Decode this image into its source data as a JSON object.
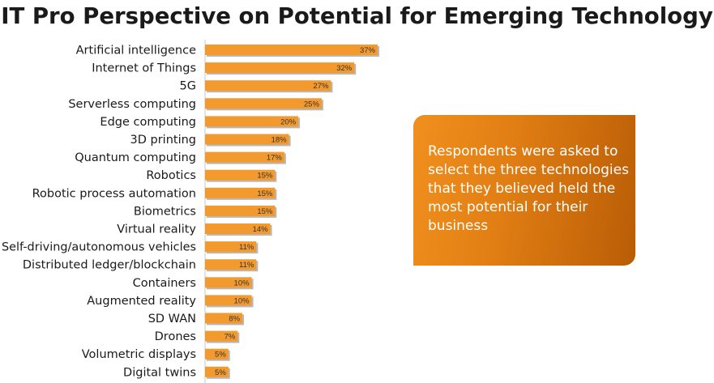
{
  "colors": {
    "bar": "#f39a2f",
    "bar_shadow": "#b8b8b8",
    "axis": "#c8c8c8"
  },
  "chart_data": {
    "type": "bar",
    "orientation": "horizontal",
    "title": "IT Pro Perspective on Potential for Emerging Technology",
    "value_unit": "%",
    "xlim": [
      0,
      37
    ],
    "categories": [
      "Artificial intelligence",
      "Internet of Things",
      "5G",
      "Serverless computing",
      "Edge computing",
      "3D printing",
      "Quantum computing",
      "Robotics",
      "Robotic process automation",
      "Biometrics",
      "Virtual reality",
      "Self-driving/autonomous vehicles",
      "Distributed ledger/blockchain",
      "Containers",
      "Augmented reality",
      "SD WAN",
      "Drones",
      "Volumetric displays",
      "Digital twins"
    ],
    "values": [
      37,
      32,
      27,
      25,
      20,
      18,
      17,
      15,
      15,
      15,
      14,
      11,
      11,
      10,
      10,
      8,
      7,
      5,
      5
    ],
    "value_labels": [
      "37%",
      "32%",
      "27%",
      "25%",
      "20%",
      "18%",
      "17%",
      "15%",
      "15%",
      "15%",
      "14%",
      "11%",
      "11%",
      "10%",
      "10%",
      "8%",
      "7%",
      "5%",
      "5%"
    ]
  },
  "callout": {
    "text": "Respondents were asked to select the three technologies that they believed held the most potential for their business"
  }
}
